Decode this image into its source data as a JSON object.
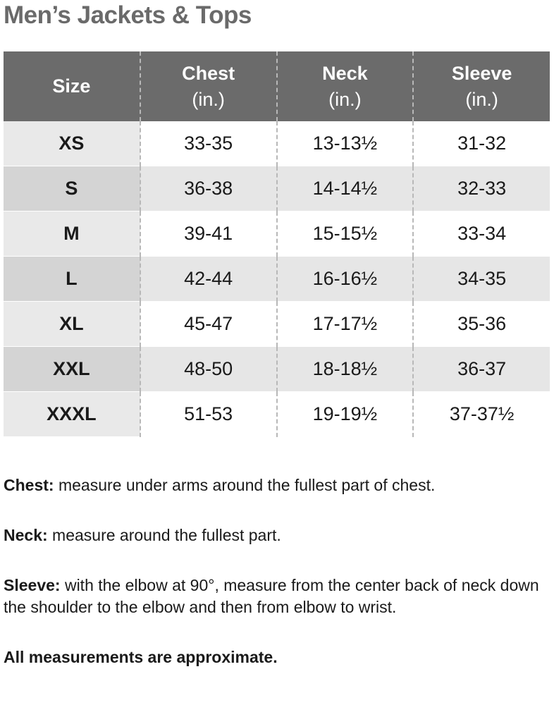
{
  "title": "Men’s Jackets & Tops",
  "table": {
    "header": [
      {
        "name": "Size"
      },
      {
        "name": "Chest",
        "unit": "(in.)"
      },
      {
        "name": "Neck",
        "unit": "(in.)"
      },
      {
        "name": "Sleeve",
        "unit": "(in.)"
      }
    ],
    "rows": [
      [
        "XS",
        "33-35",
        "13-13½",
        "31-32"
      ],
      [
        "S",
        "36-38",
        "14-14½",
        "32-33"
      ],
      [
        "M",
        "39-41",
        "15-15½",
        "33-34"
      ],
      [
        "L",
        "42-44",
        "16-16½",
        "34-35"
      ],
      [
        "XL",
        "45-47",
        "17-17½",
        "35-36"
      ],
      [
        "XXL",
        "48-50",
        "18-18½",
        "36-37"
      ],
      [
        "XXXL",
        "51-53",
        "19-19½",
        "37-37½"
      ]
    ]
  },
  "notes": [
    {
      "label": "Chest:",
      "text": " measure under arms around the fullest part of chest."
    },
    {
      "label": "Neck:",
      "text": " measure around the fullest part."
    },
    {
      "label": "Sleeve:",
      "text": " with the elbow at 90°, measure from the center back of neck down the shoulder to the elbow and then from elbow to wrist."
    },
    {
      "label": "All measurements are approximate."
    }
  ]
}
